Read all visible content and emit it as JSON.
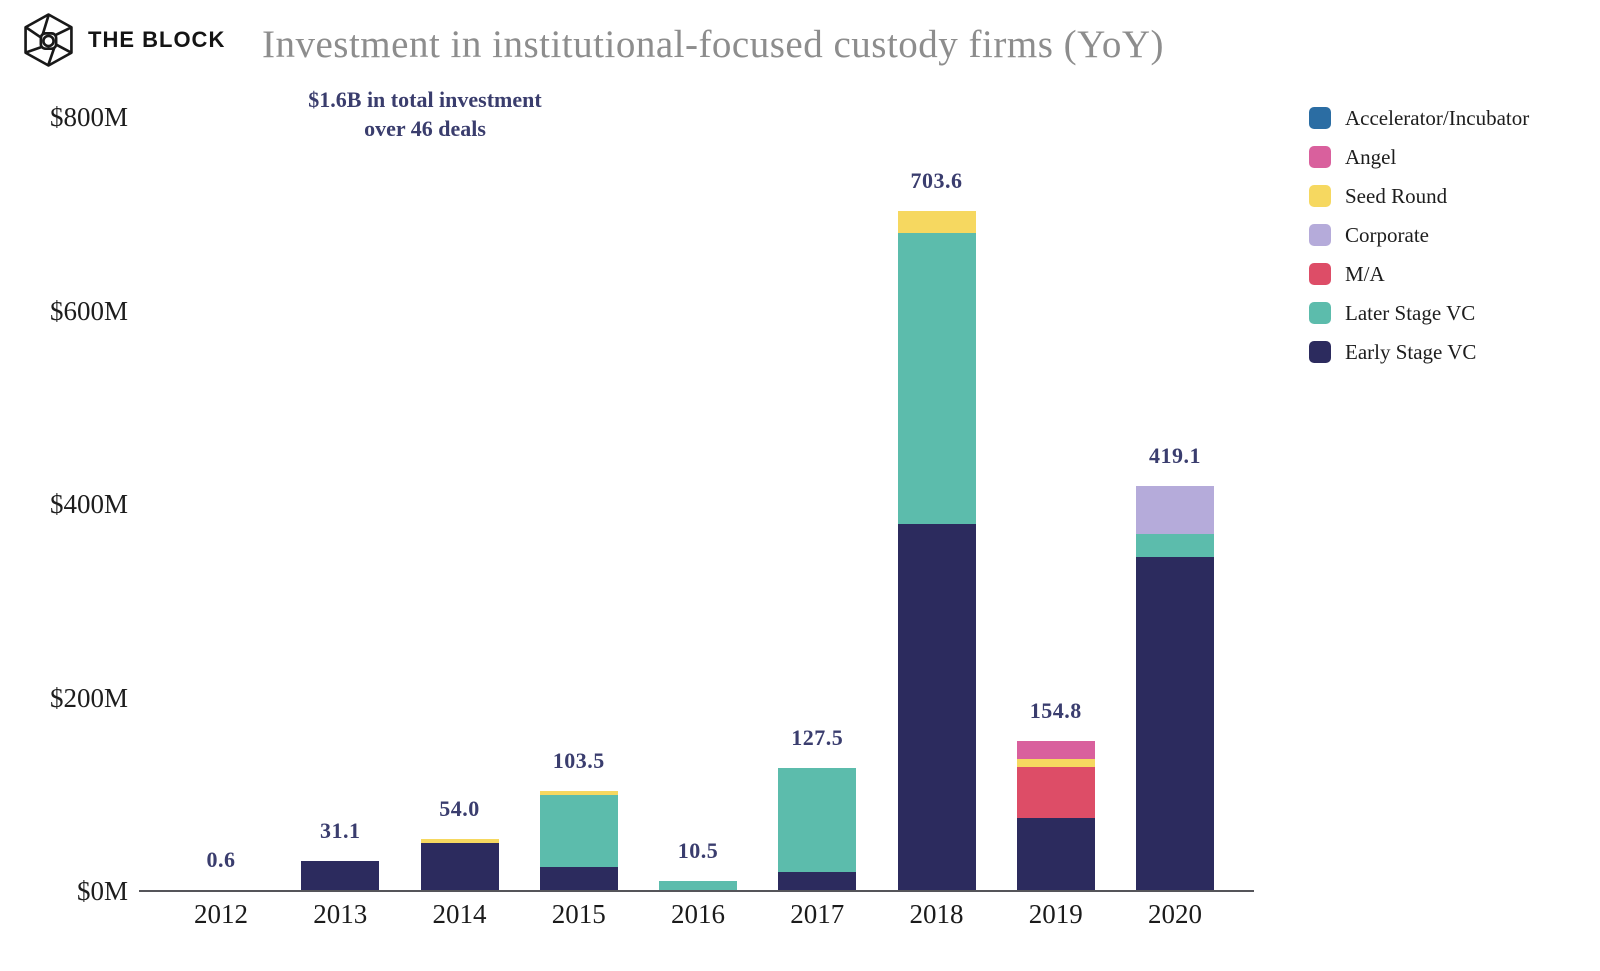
{
  "brand": {
    "name": "THE BLOCK"
  },
  "title": "Investment in institutional-focused custody firms (YoY)",
  "subtitle": {
    "line1": "$1.6B in total investment",
    "line2": "over 46 deals"
  },
  "colors": {
    "title_text": "#8d8d8d",
    "subtitle_text": "#3a3d6d",
    "value_label_text": "#3a3d6e",
    "tick_label_text": "#1d1d1d",
    "axis_line": "#55555a"
  },
  "chart_data": {
    "type": "bar",
    "stacked": true,
    "title": "Investment in institutional-focused custody firms (YoY)",
    "annotation": "$1.6B in total investment over 46 deals",
    "unit": "USD millions",
    "xlabel": "",
    "ylabel": "",
    "ylim": [
      0,
      800
    ],
    "grid": false,
    "categories": [
      "2012",
      "2013",
      "2014",
      "2015",
      "2016",
      "2017",
      "2018",
      "2019",
      "2020"
    ],
    "series": [
      {
        "name": "Early Stage VC",
        "color": "#2c2b5e",
        "values": [
          0,
          31.1,
          50.0,
          24.5,
          0,
          20.0,
          380.0,
          75.3,
          345.3
        ]
      },
      {
        "name": "Later Stage VC",
        "color": "#5cbcac",
        "values": [
          0,
          0,
          0,
          75.0,
          10.5,
          107.5,
          300.0,
          0,
          23.8
        ]
      },
      {
        "name": "M/A",
        "color": "#dd4d67",
        "values": [
          0,
          0,
          0,
          0,
          0,
          0,
          0,
          53.0,
          0
        ]
      },
      {
        "name": "Corporate",
        "color": "#b5abda",
        "values": [
          0,
          0,
          0,
          0,
          0,
          0,
          0,
          0,
          50.0
        ]
      },
      {
        "name": "Seed Round",
        "color": "#f6d860",
        "values": [
          0,
          0,
          4.0,
          4.0,
          0,
          0,
          23.6,
          8.5,
          0
        ]
      },
      {
        "name": "Angel",
        "color": "#d9609d",
        "values": [
          0,
          0,
          0,
          0,
          0,
          0,
          0,
          18.0,
          0
        ]
      },
      {
        "name": "Accelerator/Incubator",
        "color": "#2b6da3",
        "values": [
          0.6,
          0,
          0,
          0,
          0,
          0,
          0,
          0,
          0
        ]
      }
    ],
    "totals": [
      0.6,
      31.1,
      54.0,
      103.5,
      10.5,
      127.5,
      703.6,
      154.8,
      419.1
    ],
    "total_labels": [
      "0.6",
      "31.1",
      "54.0",
      "103.5",
      "10.5",
      "127.5",
      "703.6",
      "154.8",
      "419.1"
    ],
    "y_axis": {
      "ticks": [
        {
          "label": "$0M",
          "value": 0
        },
        {
          "label": "$200M",
          "value": 200
        },
        {
          "label": "$400M",
          "value": 400
        },
        {
          "label": "$600M",
          "value": 600
        },
        {
          "label": "$800M",
          "value": 800
        }
      ]
    },
    "legend": {
      "position": "right",
      "items": [
        {
          "label": "Accelerator/Incubator",
          "color": "#2b6da3"
        },
        {
          "label": "Angel",
          "color": "#d9609d"
        },
        {
          "label": "Seed Round",
          "color": "#f6d860"
        },
        {
          "label": "Corporate",
          "color": "#b5abda"
        },
        {
          "label": "M/A",
          "color": "#dd4d67"
        },
        {
          "label": "Later Stage VC",
          "color": "#5cbcac"
        },
        {
          "label": "Early Stage VC",
          "color": "#2c2b5e"
        }
      ]
    }
  }
}
